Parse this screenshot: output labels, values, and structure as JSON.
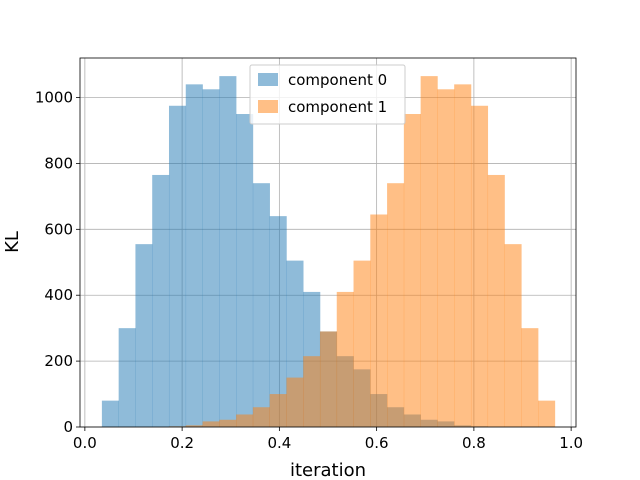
{
  "chart_data": {
    "type": "bar",
    "subtype": "overlapping-histogram",
    "title": "",
    "xlabel": "iteration",
    "ylabel": "KL",
    "xlim": [
      -0.01,
      1.01
    ],
    "ylim": [
      0,
      1120
    ],
    "xticks": [
      0.0,
      0.2,
      0.4,
      0.6,
      0.8,
      1.0
    ],
    "xtick_labels": [
      "0.0",
      "0.2",
      "0.4",
      "0.6",
      "0.8",
      "1.0"
    ],
    "yticks": [
      0,
      200,
      400,
      600,
      800,
      1000
    ],
    "ytick_labels": [
      "0",
      "200",
      "400",
      "600",
      "800",
      "1000"
    ],
    "grid": true,
    "legend": "upper-center",
    "series": [
      {
        "name": "component 0",
        "color": "#1f77b4",
        "alpha": 0.5,
        "bin_edges": [
          0.035,
          0.0695,
          0.104,
          0.1385,
          0.173,
          0.2075,
          0.242,
          0.2765,
          0.311,
          0.3455,
          0.38,
          0.4145,
          0.449,
          0.4835,
          0.518,
          0.5525,
          0.587,
          0.6215,
          0.656,
          0.6905,
          0.725,
          0.7595,
          0.794,
          0.8285,
          0.863,
          0.8975,
          0.932,
          0.9665
        ],
        "counts": [
          80,
          300,
          555,
          765,
          975,
          1040,
          1025,
          1065,
          950,
          740,
          640,
          505,
          410,
          290,
          215,
          175,
          100,
          60,
          38,
          22,
          17,
          5,
          2,
          0,
          0,
          0,
          0
        ]
      },
      {
        "name": "component 1",
        "color": "#ff7f0e",
        "alpha": 0.5,
        "bin_edges": [
          0.035,
          0.0695,
          0.104,
          0.1385,
          0.173,
          0.2075,
          0.242,
          0.2765,
          0.311,
          0.3455,
          0.38,
          0.4145,
          0.449,
          0.4835,
          0.518,
          0.5525,
          0.587,
          0.6215,
          0.656,
          0.6905,
          0.725,
          0.7595,
          0.794,
          0.8285,
          0.863,
          0.8975,
          0.932,
          0.9665
        ],
        "counts": [
          0,
          0,
          0,
          0,
          2,
          5,
          17,
          22,
          38,
          60,
          100,
          150,
          215,
          290,
          410,
          505,
          645,
          740,
          950,
          1065,
          1025,
          1040,
          975,
          765,
          555,
          300,
          80
        ]
      }
    ]
  }
}
